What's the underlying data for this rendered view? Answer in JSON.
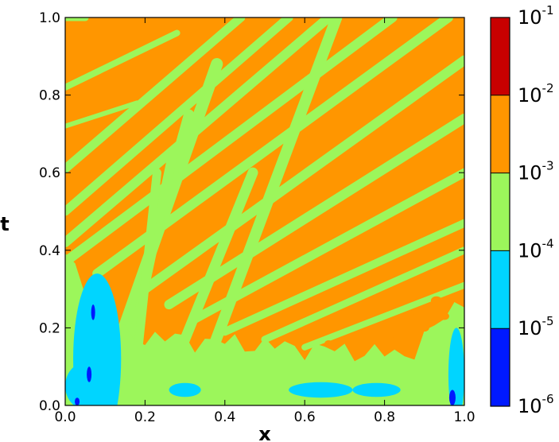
{
  "chart_data": {
    "type": "heatmap",
    "xlabel": "x",
    "ylabel": "t",
    "xlim": [
      0.0,
      1.0
    ],
    "ylim": [
      0.0,
      1.0
    ],
    "x_ticks": [
      "0.0",
      "0.2",
      "0.4",
      "0.6",
      "0.8",
      "1.0"
    ],
    "y_ticks": [
      "0.0",
      "0.2",
      "0.4",
      "0.6",
      "0.8",
      "1.0"
    ],
    "colorbar": {
      "scale": "log",
      "levels": [
        {
          "base": "10",
          "exp": "-6",
          "value": 1e-06
        },
        {
          "base": "10",
          "exp": "-5",
          "value": 1e-05
        },
        {
          "base": "10",
          "exp": "-4",
          "value": 0.0001
        },
        {
          "base": "10",
          "exp": "-3",
          "value": 0.001
        },
        {
          "base": "10",
          "exp": "-2",
          "value": 0.01
        },
        {
          "base": "10",
          "exp": "-1",
          "value": 0.1
        }
      ],
      "bands": [
        {
          "from": 1e-06,
          "to": 1e-05,
          "color": "#0019ff"
        },
        {
          "from": 1e-05,
          "to": 0.0001,
          "color": "#00d5ff"
        },
        {
          "from": 0.0001,
          "to": 0.001,
          "color": "#9cf65b"
        },
        {
          "from": 0.001,
          "to": 0.01,
          "color": "#ff9600"
        },
        {
          "from": 0.01,
          "to": 0.1,
          "color": "#c80000"
        }
      ]
    },
    "background_band_color": "#ff9600",
    "stripes": [
      {
        "x0": 0.0,
        "t0": 1.0,
        "x1": 0.05,
        "t1": 1.0,
        "width": 0.018
      },
      {
        "x0": 0.0,
        "t0": 0.82,
        "x1": 0.28,
        "t1": 0.96,
        "width": 0.016
      },
      {
        "x0": 0.0,
        "t0": 0.72,
        "x1": 0.18,
        "t1": 0.78,
        "width": 0.012
      },
      {
        "x0": 0.0,
        "t0": 0.61,
        "x1": 0.44,
        "t1": 1.0,
        "width": 0.022
      },
      {
        "x0": 0.0,
        "t0": 0.5,
        "x1": 0.56,
        "t1": 1.0,
        "width": 0.022
      },
      {
        "x0": 0.0,
        "t0": 0.42,
        "x1": 0.66,
        "t1": 1.0,
        "width": 0.024
      },
      {
        "x0": 0.0,
        "t0": 0.37,
        "x1": 0.82,
        "t1": 1.0,
        "width": 0.024
      },
      {
        "x0": 0.08,
        "t0": 0.34,
        "x1": 0.96,
        "t1": 1.0,
        "width": 0.024
      },
      {
        "x0": 0.2,
        "t0": 0.3,
        "x1": 1.0,
        "t1": 0.89,
        "width": 0.024
      },
      {
        "x0": 0.26,
        "t0": 0.26,
        "x1": 1.0,
        "t1": 0.74,
        "width": 0.024
      },
      {
        "x0": 0.32,
        "t0": 0.22,
        "x1": 1.0,
        "t1": 0.6,
        "width": 0.022
      },
      {
        "x0": 0.4,
        "t0": 0.19,
        "x1": 1.0,
        "t1": 0.47,
        "width": 0.02
      },
      {
        "x0": 0.5,
        "t0": 0.17,
        "x1": 1.0,
        "t1": 0.4,
        "width": 0.018
      },
      {
        "x0": 0.6,
        "t0": 0.15,
        "x1": 1.0,
        "t1": 0.31,
        "width": 0.016
      },
      {
        "x0": 0.12,
        "t0": 0.12,
        "x1": 0.38,
        "t1": 0.88,
        "width": 0.03
      },
      {
        "x0": 0.14,
        "t0": 0.12,
        "x1": 0.31,
        "t1": 0.75,
        "width": 0.026
      },
      {
        "x0": 0.16,
        "t0": 0.12,
        "x1": 0.27,
        "t1": 0.65,
        "width": 0.024
      },
      {
        "x0": 0.18,
        "t0": 0.12,
        "x1": 0.23,
        "t1": 0.6,
        "width": 0.022
      },
      {
        "x0": 0.36,
        "t0": 0.12,
        "x1": 0.68,
        "t1": 1.0,
        "width": 0.028
      },
      {
        "x0": 0.28,
        "t0": 0.12,
        "x1": 0.47,
        "t1": 0.6,
        "width": 0.026
      }
    ],
    "low_region": {
      "t_top": 0.12,
      "t_left_top": 0.38,
      "t_right_top": 0.28
    },
    "cyan_patches": [
      {
        "x": 0.08,
        "t": 0.12,
        "rx": 0.06,
        "rt": 0.22
      },
      {
        "x": 0.05,
        "t": 0.05,
        "rx": 0.05,
        "rt": 0.06
      },
      {
        "x": 0.98,
        "t": 0.08,
        "rx": 0.02,
        "rt": 0.12
      },
      {
        "x": 0.64,
        "t": 0.04,
        "rx": 0.08,
        "rt": 0.02
      },
      {
        "x": 0.78,
        "t": 0.04,
        "rx": 0.06,
        "rt": 0.018
      },
      {
        "x": 0.3,
        "t": 0.04,
        "rx": 0.04,
        "rt": 0.018
      }
    ],
    "blue_patches": [
      {
        "x": 0.07,
        "t": 0.24,
        "rx": 0.005,
        "rt": 0.02
      },
      {
        "x": 0.06,
        "t": 0.08,
        "rx": 0.006,
        "rt": 0.02
      },
      {
        "x": 0.03,
        "t": 0.01,
        "rx": 0.006,
        "rt": 0.01
      },
      {
        "x": 0.97,
        "t": 0.02,
        "rx": 0.008,
        "rt": 0.02
      }
    ],
    "orange_flecks": [
      {
        "x": 0.93,
        "t": 0.27,
        "r": 0.014
      },
      {
        "x": 0.95,
        "t": 0.23,
        "r": 0.012
      },
      {
        "x": 0.88,
        "t": 0.24,
        "r": 0.01
      },
      {
        "x": 0.9,
        "t": 0.2,
        "r": 0.012
      },
      {
        "x": 0.83,
        "t": 0.18,
        "r": 0.01
      },
      {
        "x": 0.66,
        "t": 0.16,
        "r": 0.01
      },
      {
        "x": 0.72,
        "t": 0.15,
        "r": 0.008
      },
      {
        "x": 0.56,
        "t": 0.17,
        "r": 0.008
      }
    ]
  }
}
